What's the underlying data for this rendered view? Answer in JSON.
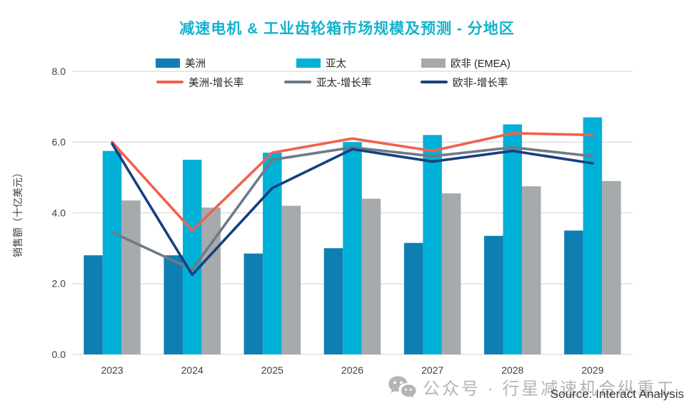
{
  "page": {
    "title": "减速电机 & 工业齿轮箱市场规模及预测 - 分地区"
  },
  "legend": {
    "bars": [
      {
        "label": "美洲",
        "color": "#0e7fb0"
      },
      {
        "label": "亚太",
        "color": "#00b1d8"
      },
      {
        "label": "欧非 (EMEA)",
        "color": "#a7aaad"
      }
    ],
    "lines": [
      {
        "label": "美洲-增长率",
        "color": "#f2604d"
      },
      {
        "label": "亚太-增长率",
        "color": "#6e7b87"
      },
      {
        "label": "欧非-增长率",
        "color": "#16407e"
      }
    ]
  },
  "watermark": {
    "icon": "wechat-icon",
    "text": "公众号 · 行星减速机合纵重工"
  },
  "source": {
    "text": "Source: Interact Analysis"
  },
  "chart_data": {
    "type": "bar",
    "subtype": "grouped bars with overlaid growth-rate lines",
    "title": "减速电机 & 工业齿轮箱市场规模及预测 - 分地区",
    "xlabel": "",
    "ylabel": "销售额（十亿美元）",
    "categories": [
      "2023",
      "2024",
      "2025",
      "2026",
      "2027",
      "2028",
      "2029"
    ],
    "ylim": [
      0,
      8
    ],
    "yticks": [
      "0.0",
      "2.0",
      "4.0",
      "6.0",
      "8.0"
    ],
    "grid": "horizontal",
    "legend_position": "top",
    "bar_series": [
      {
        "id": "americas",
        "name": "美洲",
        "color": "#0e7fb0",
        "values": [
          2.8,
          2.8,
          2.85,
          3.0,
          3.15,
          3.35,
          3.5
        ]
      },
      {
        "id": "apac",
        "name": "亚太",
        "color": "#00b1d8",
        "values": [
          5.75,
          5.5,
          5.7,
          6.0,
          6.2,
          6.5,
          6.7
        ]
      },
      {
        "id": "emea",
        "name": "欧非 (EMEA)",
        "color": "#a7aaad",
        "values": [
          4.35,
          4.15,
          4.2,
          4.4,
          4.55,
          4.75,
          4.9
        ]
      }
    ],
    "line_series": [
      {
        "id": "apac-growth",
        "name": "亚太-增长率",
        "color": "#6e7b87",
        "values": [
          3.45,
          2.4,
          5.5,
          5.85,
          5.6,
          5.85,
          5.6
        ]
      },
      {
        "id": "americas-growth",
        "name": "美洲-增长率",
        "color": "#f2604d",
        "values": [
          6.0,
          3.5,
          5.7,
          6.1,
          5.75,
          6.25,
          6.2
        ]
      },
      {
        "id": "emea-growth",
        "name": "欧非-增长率",
        "color": "#16407e",
        "values": [
          5.95,
          2.25,
          4.7,
          5.8,
          5.45,
          5.75,
          5.4
        ]
      }
    ],
    "note": "Growth-rate lines are plotted against a hidden secondary axis; values above are read in left-axis units as drawn."
  }
}
